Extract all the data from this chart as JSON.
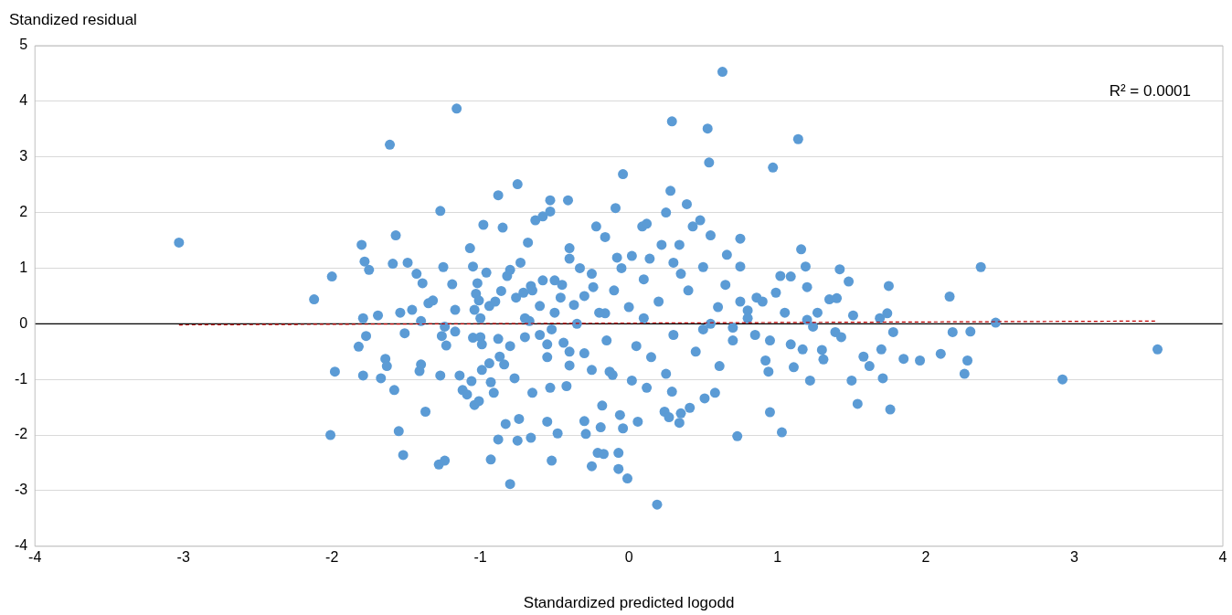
{
  "chart_data": {
    "type": "scatter",
    "xlabel": "Standardized predicted logodd",
    "ylabel": "Standized residual",
    "annotations": [
      "R² = 0.0001"
    ],
    "xlim": [
      -4,
      4
    ],
    "xticks": [
      -4,
      -3,
      -2,
      -1,
      0,
      1,
      2,
      3,
      4
    ],
    "ylim": [
      -4,
      5
    ],
    "yticks": [
      -4,
      -3,
      -2,
      -1,
      0,
      1,
      2,
      3,
      4,
      5
    ],
    "grid": "y",
    "marker": "circle",
    "ref_lines": [
      {
        "axis": "y",
        "value": 0,
        "color": "#000000"
      }
    ],
    "series": [
      {
        "type": "scatter",
        "color": "#5b9bd5",
        "x": [
          -3.03,
          -2.12,
          -2.0,
          -1.98,
          -2.01,
          -1.8,
          -1.78,
          -1.75,
          -1.79,
          -1.82,
          -1.77,
          -1.79,
          -1.69,
          -1.67,
          -1.64,
          -1.63,
          -1.61,
          -1.59,
          -1.57,
          -1.58,
          -1.55,
          -1.52,
          -1.54,
          -1.51,
          -1.49,
          -1.46,
          -1.43,
          -1.41,
          -1.4,
          -1.39,
          -1.37,
          -1.35,
          -1.32,
          -1.4,
          -1.27,
          -1.25,
          -1.24,
          -1.26,
          -1.23,
          -1.27,
          -1.28,
          -1.24,
          -1.16,
          -1.19,
          -1.17,
          -1.17,
          -1.14,
          -1.12,
          -1.09,
          -1.07,
          -1.05,
          -1.04,
          -1.05,
          -1.02,
          -1.03,
          -1.01,
          -1.0,
          -0.99,
          -1.06,
          -1.04,
          -1.01,
          -0.99,
          -0.98,
          -0.96,
          -0.94,
          -0.94,
          -0.93,
          -0.93,
          -0.91,
          -0.88,
          -0.88,
          -0.88,
          -0.87,
          -0.86,
          -0.85,
          -0.84,
          -0.82,
          -0.83,
          -0.8,
          -0.8,
          -0.77,
          -0.75,
          -0.74,
          -0.75,
          -0.73,
          -0.76,
          -0.71,
          -0.7,
          -0.68,
          -0.66,
          -0.67,
          -0.65,
          -0.66,
          -0.63,
          -0.6,
          -0.58,
          -0.58,
          -0.55,
          -0.55,
          -0.53,
          -0.53,
          -0.53,
          -0.52,
          -0.52,
          -0.5,
          -0.48,
          -0.46,
          -0.44,
          -0.42,
          -0.41,
          -0.4,
          -0.4,
          -0.4,
          -0.37,
          -0.33,
          -0.3,
          -0.3,
          -0.29,
          -0.25,
          -0.25,
          -0.24,
          -0.22,
          -0.21,
          -0.19,
          -0.18,
          -0.16,
          -0.17,
          -0.16,
          -0.13,
          -0.11,
          -0.09,
          -0.08,
          -0.07,
          -0.07,
          -0.06,
          -0.04,
          -0.04,
          -0.01,
          0.02,
          0.02,
          0.06,
          0.09,
          0.12,
          0.14,
          0.12,
          0.19,
          0.22,
          0.24,
          0.25,
          0.27,
          0.28,
          0.29,
          0.29,
          0.34,
          0.34,
          0.35,
          0.39,
          0.41,
          0.43,
          0.48,
          0.5,
          0.51,
          0.53,
          0.54,
          0.55,
          0.58,
          0.61,
          0.63,
          0.66,
          0.7,
          0.73,
          0.75,
          0.75,
          0.8,
          0.86,
          0.92,
          0.94,
          0.95,
          0.97,
          0.99,
          1.03,
          1.02,
          1.09,
          1.09,
          1.11,
          1.14,
          1.16,
          1.17,
          1.19,
          1.2,
          1.2,
          1.24,
          1.22,
          1.27,
          1.3,
          1.31,
          1.35,
          1.39,
          1.42,
          1.4,
          1.43,
          1.48,
          1.5,
          1.51,
          1.54,
          1.58,
          1.62,
          1.69,
          1.7,
          1.71,
          1.75,
          1.74,
          1.76,
          1.78,
          1.85,
          1.96,
          2.1,
          2.16,
          2.18,
          2.28,
          2.26,
          2.3,
          2.37,
          2.47,
          2.92,
          3.56,
          -0.3,
          -0.2,
          -0.1,
          0.0,
          0.1,
          0.2,
          0.3,
          0.4,
          0.5,
          0.6,
          0.7,
          0.8,
          -0.5,
          -0.6,
          -0.7,
          -0.8,
          -0.9,
          -0.4,
          0.05,
          0.15,
          0.35,
          0.45,
          0.55,
          0.65,
          0.85,
          0.9,
          -0.15,
          -0.25,
          -0.35,
          -0.45,
          -0.55,
          0.25,
          0.75,
          -0.05,
          0.95,
          1.05,
          -1.0,
          0.3,
          -0.65,
          0.1
        ],
        "values": [
          1.46,
          0.44,
          0.85,
          -0.86,
          -2.0,
          1.42,
          1.12,
          0.97,
          0.1,
          -0.41,
          -0.22,
          -0.93,
          0.15,
          -0.98,
          -0.63,
          -0.76,
          3.22,
          1.08,
          1.59,
          -1.19,
          -1.93,
          -2.36,
          0.2,
          -0.17,
          1.1,
          0.25,
          0.9,
          -0.85,
          -0.73,
          0.73,
          -1.58,
          0.37,
          0.42,
          0.05,
          2.03,
          1.02,
          -0.05,
          -0.22,
          -0.39,
          -0.93,
          -2.53,
          -2.46,
          3.87,
          0.71,
          0.25,
          -0.14,
          -0.93,
          -1.19,
          -1.27,
          1.36,
          1.03,
          0.25,
          -0.25,
          0.73,
          0.54,
          0.42,
          -0.24,
          -0.37,
          -1.03,
          -1.46,
          -1.39,
          -0.83,
          1.78,
          0.92,
          0.32,
          -0.71,
          -1.05,
          -2.44,
          -1.24,
          2.31,
          -2.08,
          -0.27,
          -0.59,
          0.59,
          1.73,
          -0.73,
          0.86,
          -1.8,
          -2.88,
          0.97,
          -0.98,
          2.51,
          -1.71,
          -2.1,
          1.1,
          0.47,
          0.56,
          -0.24,
          1.46,
          0.68,
          0.05,
          -1.24,
          -2.05,
          1.86,
          0.32,
          1.93,
          0.78,
          -1.76,
          -0.37,
          -1.15,
          2.02,
          2.22,
          -2.46,
          -0.1,
          0.78,
          -1.97,
          0.47,
          -0.34,
          -1.12,
          2.22,
          1.36,
          1.17,
          -0.75,
          0.34,
          1.0,
          -0.53,
          -1.75,
          -1.98,
          -2.56,
          -0.83,
          0.66,
          1.75,
          -2.32,
          -1.86,
          -1.47,
          1.56,
          -2.34,
          0.19,
          -0.86,
          -0.92,
          2.08,
          1.19,
          -2.32,
          -2.61,
          -1.64,
          2.69,
          -1.88,
          -2.78,
          1.22,
          -1.02,
          -1.76,
          1.75,
          1.8,
          1.17,
          -1.15,
          -3.25,
          1.42,
          -1.58,
          2.0,
          -1.68,
          2.39,
          3.64,
          -1.22,
          1.42,
          -1.78,
          -1.61,
          2.15,
          -1.51,
          1.75,
          1.86,
          1.02,
          -1.34,
          3.51,
          2.9,
          1.59,
          -1.24,
          -0.76,
          4.53,
          1.24,
          -0.07,
          -2.02,
          1.53,
          1.03,
          0.24,
          0.47,
          -0.66,
          -0.86,
          -1.59,
          2.81,
          0.56,
          -1.95,
          0.86,
          0.85,
          -0.37,
          -0.78,
          3.32,
          1.34,
          -0.46,
          1.03,
          0.66,
          0.07,
          -0.05,
          -1.02,
          0.2,
          -0.47,
          -0.64,
          0.44,
          -0.15,
          0.98,
          0.46,
          -0.24,
          0.76,
          -1.02,
          0.15,
          -1.44,
          -0.59,
          -0.76,
          0.1,
          -0.46,
          -0.98,
          0.68,
          0.19,
          -1.54,
          -0.15,
          -0.63,
          -0.66,
          -0.54,
          0.49,
          -0.15,
          -0.66,
          -0.9,
          -0.14,
          1.02,
          0.02,
          -1.0,
          -0.46,
          0.5,
          0.2,
          0.6,
          0.3,
          0.1,
          0.4,
          -0.2,
          0.6,
          -0.1,
          0.3,
          -0.3,
          0.1,
          0.2,
          -0.2,
          0.1,
          -0.4,
          0.4,
          -0.5,
          -0.4,
          -0.6,
          0.9,
          -0.5,
          0.0,
          0.7,
          -0.2,
          0.4,
          -0.3,
          0.9,
          0.0,
          0.7,
          -0.6,
          -0.9,
          0.4,
          1.0,
          -0.3,
          0.2,
          0.1,
          1.1,
          0.6,
          0.8
        ]
      },
      {
        "type": "line",
        "color": "#c00000",
        "line_style": "dashed",
        "marker": "none",
        "x": [
          -3.03,
          3.56
        ],
        "values": [
          -0.02,
          0.05
        ]
      }
    ]
  }
}
